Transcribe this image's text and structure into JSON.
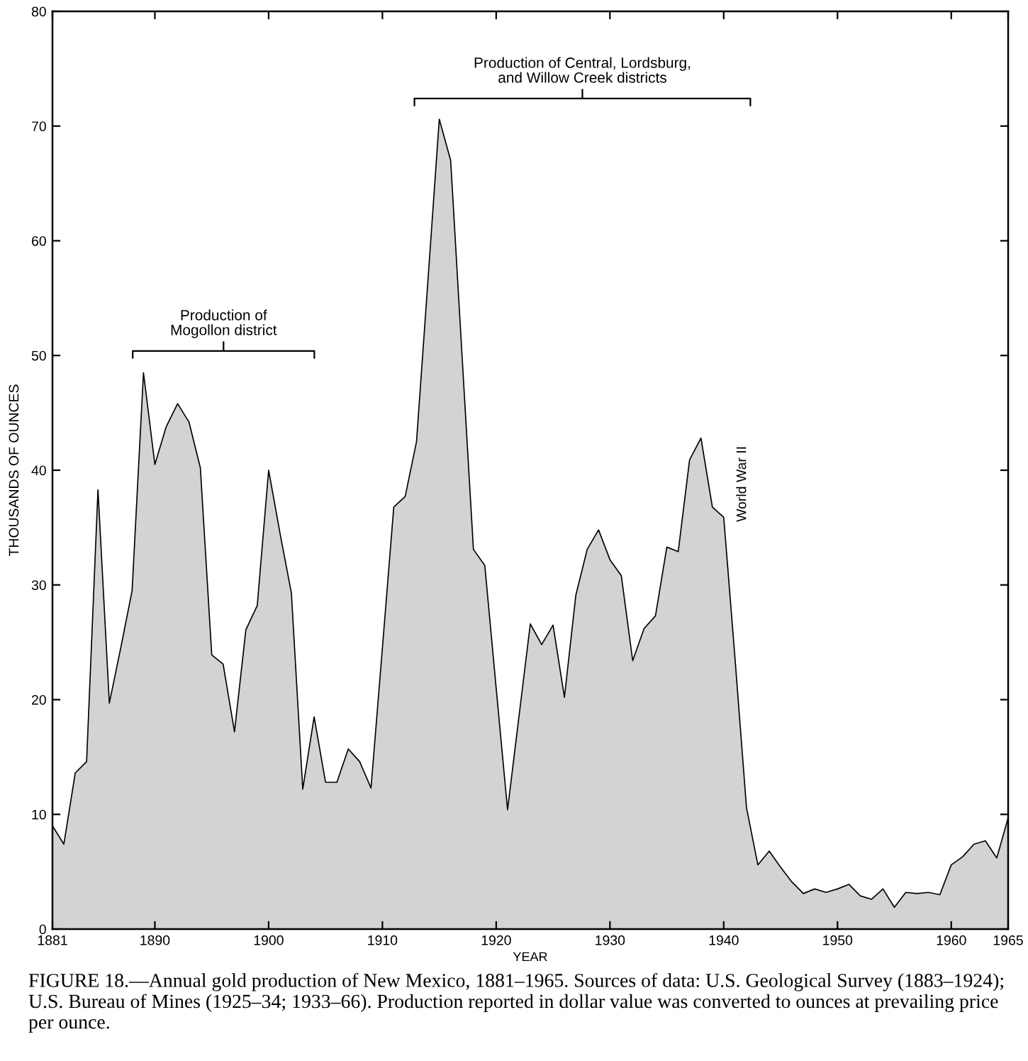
{
  "chart_data": {
    "type": "area",
    "xlabel": "YEAR",
    "ylabel": "THOUSANDS OF OUNCES",
    "x": [
      1881,
      1882,
      1883,
      1884,
      1885,
      1886,
      1887,
      1888,
      1889,
      1890,
      1891,
      1892,
      1893,
      1894,
      1895,
      1896,
      1897,
      1898,
      1899,
      1900,
      1901,
      1902,
      1903,
      1904,
      1905,
      1906,
      1907,
      1908,
      1909,
      1910,
      1911,
      1912,
      1913,
      1914,
      1915,
      1916,
      1917,
      1918,
      1919,
      1920,
      1921,
      1922,
      1923,
      1924,
      1925,
      1926,
      1927,
      1928,
      1929,
      1930,
      1931,
      1932,
      1933,
      1934,
      1935,
      1936,
      1937,
      1938,
      1939,
      1940,
      1941,
      1942,
      1943,
      1944,
      1945,
      1946,
      1947,
      1948,
      1949,
      1950,
      1951,
      1952,
      1953,
      1954,
      1955,
      1956,
      1957,
      1958,
      1959,
      1960,
      1961,
      1962,
      1963,
      1964,
      1965
    ],
    "values": [
      9.0,
      7.4,
      13.6,
      14.6,
      38.3,
      19.7,
      24.5,
      29.5,
      48.5,
      40.5,
      43.8,
      45.8,
      44.2,
      40.2,
      23.9,
      23.1,
      17.2,
      26.1,
      28.2,
      40.0,
      34.5,
      29.3,
      12.2,
      18.5,
      12.8,
      12.8,
      15.7,
      14.6,
      12.3,
      24.5,
      36.8,
      37.7,
      42.5,
      56.5,
      70.6,
      67.0,
      50.0,
      33.1,
      31.7,
      21.0,
      10.4,
      18.5,
      26.6,
      24.8,
      26.5,
      20.2,
      29.1,
      33.1,
      34.8,
      32.2,
      30.8,
      23.4,
      26.2,
      27.3,
      33.3,
      32.9,
      40.9,
      42.8,
      36.8,
      35.9,
      23.5,
      10.6,
      5.6,
      6.8,
      5.4,
      4.1,
      3.1,
      3.5,
      3.2,
      3.5,
      3.9,
      2.9,
      2.6,
      3.5,
      1.9,
      3.2,
      3.1,
      3.2,
      3.0,
      5.6,
      6.3,
      7.4,
      7.7,
      6.2,
      9.7
    ],
    "color": "#d3d3d3",
    "xlim": [
      1881,
      1965
    ],
    "xticks": [
      1881,
      1890,
      1900,
      1910,
      1920,
      1930,
      1940,
      1950,
      1960,
      1965
    ],
    "ylim": [
      0,
      80
    ],
    "yticks": [
      0,
      10,
      20,
      30,
      40,
      50,
      60,
      70,
      80
    ],
    "annotations": [
      "Production of\nMogollon district",
      "Production of Central, Lordsburg,\nand Willow Creek districts",
      "World War II",
      "FIGURE 18.—Annual gold production of New Mexico, 1881–1965. Sources of data: U.S. Geological Survey (1883–1924); U.S. Bureau of Mines (1925–34; 1933–66). Production reported in dollar value was converted to ounces at prevailing price per ounce."
    ]
  }
}
